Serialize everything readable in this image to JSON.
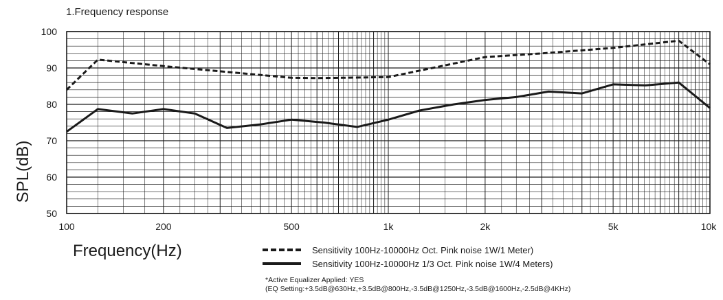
{
  "section_title": "1.Frequency response",
  "chart_data": {
    "type": "line",
    "xlabel": "Frequency(Hz)",
    "ylabel": "SPL(dB)",
    "x_scale": "log",
    "xlim": [
      100,
      10000
    ],
    "ylim": [
      50,
      100
    ],
    "grid": true,
    "x_ticks": [
      {
        "value": 100,
        "label": "100"
      },
      {
        "value": 200,
        "label": "200"
      },
      {
        "value": 500,
        "label": "500"
      },
      {
        "value": 1000,
        "label": "1k"
      },
      {
        "value": 2000,
        "label": "2k"
      },
      {
        "value": 5000,
        "label": "5k"
      },
      {
        "value": 10000,
        "label": "10k"
      }
    ],
    "y_ticks": [
      50,
      60,
      70,
      80,
      90,
      100
    ],
    "series": [
      {
        "name": "Sensitivity 100Hz-10000Hz Oct. Pink noise 1W/1 Meter)",
        "style": "dashed",
        "x": [
          100,
          125,
          200,
          500,
          600,
          1000,
          2000,
          3000,
          5000,
          8000,
          10000
        ],
        "y": [
          84,
          92.3,
          90.5,
          87.3,
          87.2,
          87.5,
          93,
          94,
          95.5,
          97.5,
          91
        ]
      },
      {
        "name": "Sensitivity 100Hz-10000Hz 1/3 Oct. Pink noise 1W/4 Meters)",
        "style": "solid",
        "x": [
          100,
          125,
          160,
          200,
          250,
          315,
          400,
          500,
          630,
          800,
          1000,
          1250,
          1600,
          2000,
          2500,
          3150,
          4000,
          5000,
          6300,
          8000,
          10000
        ],
        "y": [
          72.5,
          78.7,
          77.5,
          78.7,
          77.5,
          73.5,
          74.5,
          75.8,
          75,
          73.8,
          75.8,
          78.3,
          80,
          81.2,
          82,
          83.5,
          83,
          85.5,
          85.2,
          86,
          79
        ]
      }
    ],
    "legend_placement": "bottom",
    "annotations": [
      "*Active Equalizer Applied: YES",
      "(EQ Setting:+3.5dB@630Hz,+3.5dB@800Hz,-3.5dB@1250Hz,-3.5dB@1600Hz,-2.5dB@4KHz)"
    ]
  }
}
